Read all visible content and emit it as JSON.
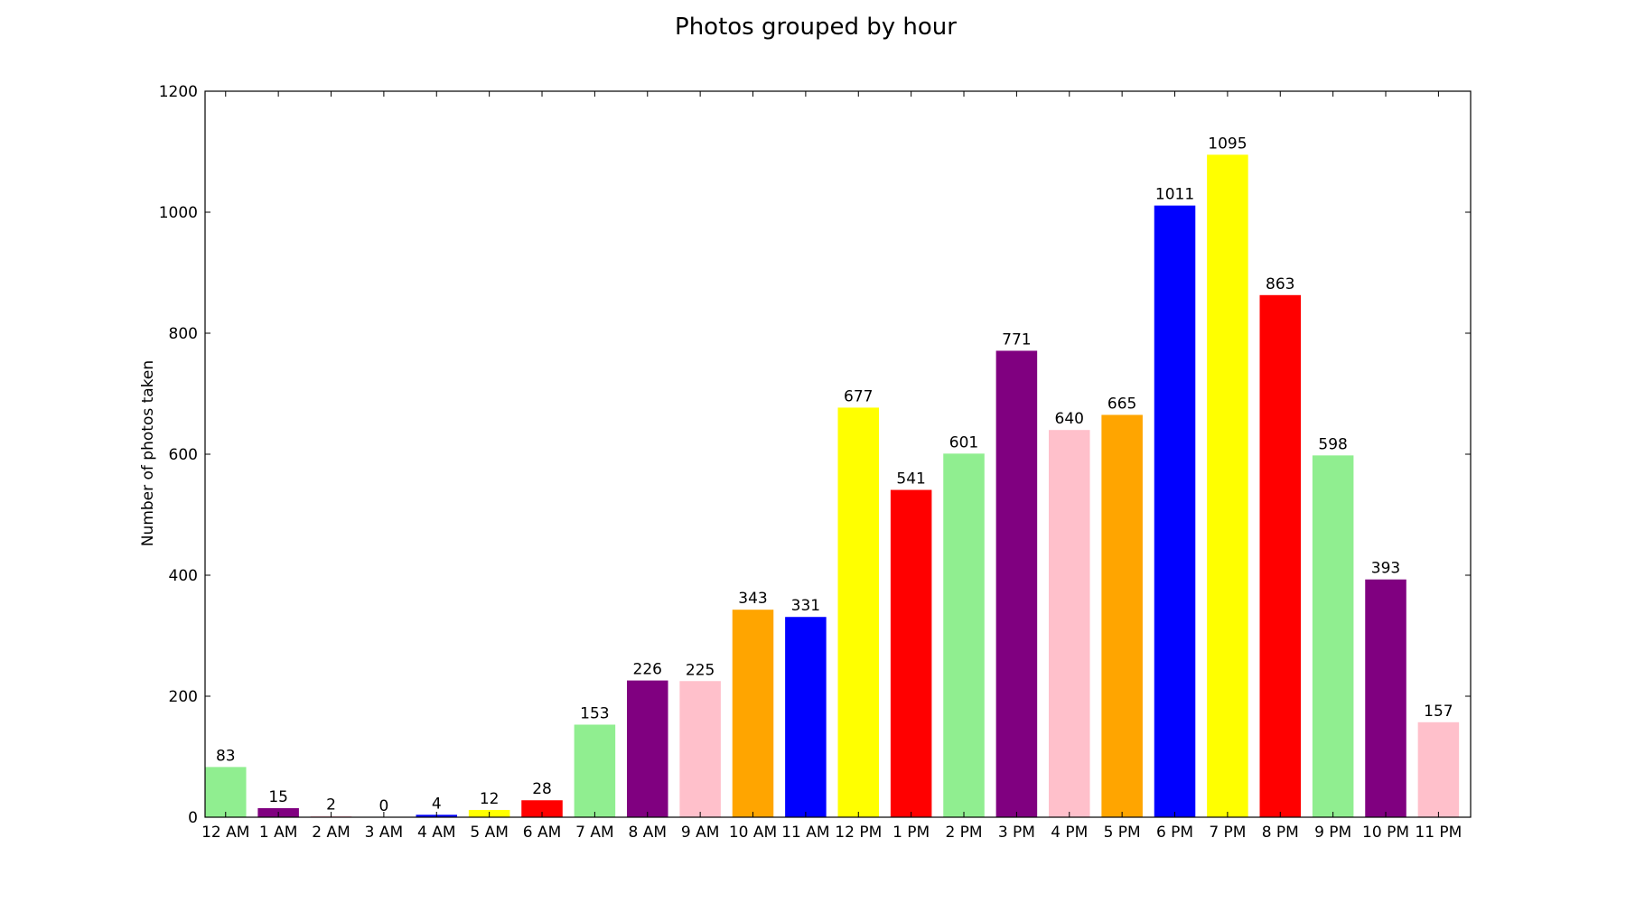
{
  "chart_data": {
    "type": "bar",
    "title": "Photos grouped by hour",
    "xlabel": "",
    "ylabel": "Number of photos taken",
    "ylim": [
      0,
      1200
    ],
    "yticks": [
      "0",
      "200",
      "400",
      "600",
      "800",
      "1000",
      "1200"
    ],
    "ytick_values": [
      0,
      200,
      400,
      600,
      800,
      1000,
      1200
    ],
    "categories": [
      "12 AM",
      "1 AM",
      "2 AM",
      "3 AM",
      "4 AM",
      "5 AM",
      "6 AM",
      "7 AM",
      "8 AM",
      "9 AM",
      "10 AM",
      "11 AM",
      "12 PM",
      "1 PM",
      "2 PM",
      "3 PM",
      "4 PM",
      "5 PM",
      "6 PM",
      "7 PM",
      "8 PM",
      "9 PM",
      "10 PM",
      "11 PM"
    ],
    "values": [
      83,
      15,
      2,
      0,
      4,
      12,
      28,
      153,
      226,
      225,
      343,
      331,
      677,
      541,
      601,
      771,
      640,
      665,
      1011,
      1095,
      863,
      598,
      393,
      157
    ],
    "value_labels": [
      "83",
      "15",
      "2",
      "0",
      "4",
      "12",
      "28",
      "153",
      "226",
      "225",
      "343",
      "331",
      "677",
      "541",
      "601",
      "771",
      "640",
      "665",
      "1011",
      "1095",
      "863",
      "598",
      "393",
      "157"
    ],
    "colors": [
      "#90ee90",
      "#800080",
      "#ffc0cb",
      "#ffa500",
      "#0000ff",
      "#ffff00",
      "#ff0000",
      "#90ee90",
      "#800080",
      "#ffc0cb",
      "#ffa500",
      "#0000ff",
      "#ffff00",
      "#ff0000",
      "#90ee90",
      "#800080",
      "#ffc0cb",
      "#ffa500",
      "#0000ff",
      "#ffff00",
      "#ff0000",
      "#90ee90",
      "#800080",
      "#ffc0cb"
    ],
    "grid": false,
    "legend": "none"
  }
}
